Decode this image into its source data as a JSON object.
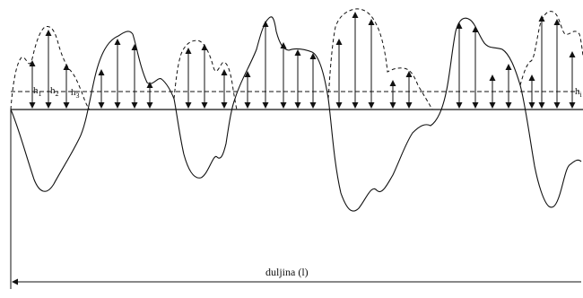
{
  "labels": {
    "h1": "h",
    "h1_sub": "1",
    "h2": "h",
    "h2_sub": "2",
    "h3": "h",
    "h3_sub": "3",
    "hi": "h",
    "hi_sub": "i",
    "length": "duljina (l)"
  },
  "colors": {
    "stroke": "#111111",
    "background": "#ffffff"
  }
}
